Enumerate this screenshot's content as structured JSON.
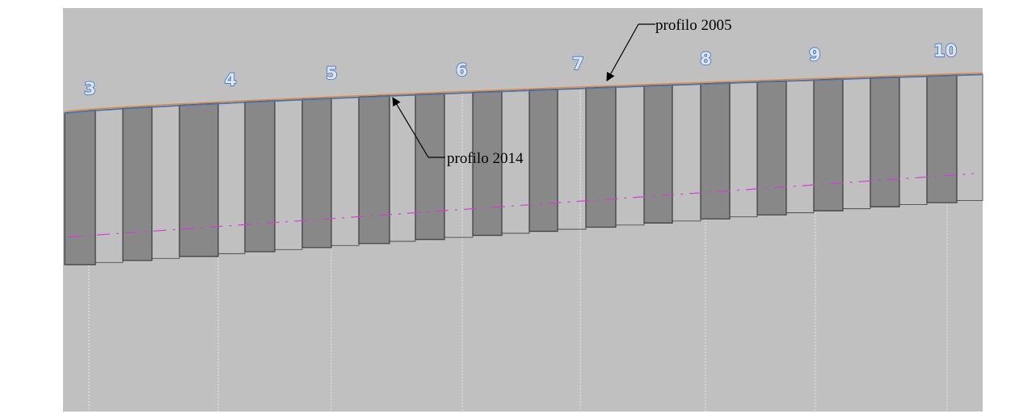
{
  "section_numbers": [
    "3",
    "4",
    "5",
    "6",
    "7",
    "8",
    "9",
    "10"
  ],
  "callouts": {
    "profile_2005": "profilo 2005",
    "profile_2014": "profilo 2014"
  },
  "colors": {
    "background": "#c0c0c0",
    "pile_fill": "#888888",
    "pile_edge": "#3a3a3a",
    "profile_2005": "#d98a3a",
    "profile_2014": "#3f73c8",
    "axis_line": "#d040d0",
    "guide_line": "#e6e6e6",
    "section_number_fill": "#dbe6f7",
    "section_number_stroke": "#2f62c4"
  }
}
